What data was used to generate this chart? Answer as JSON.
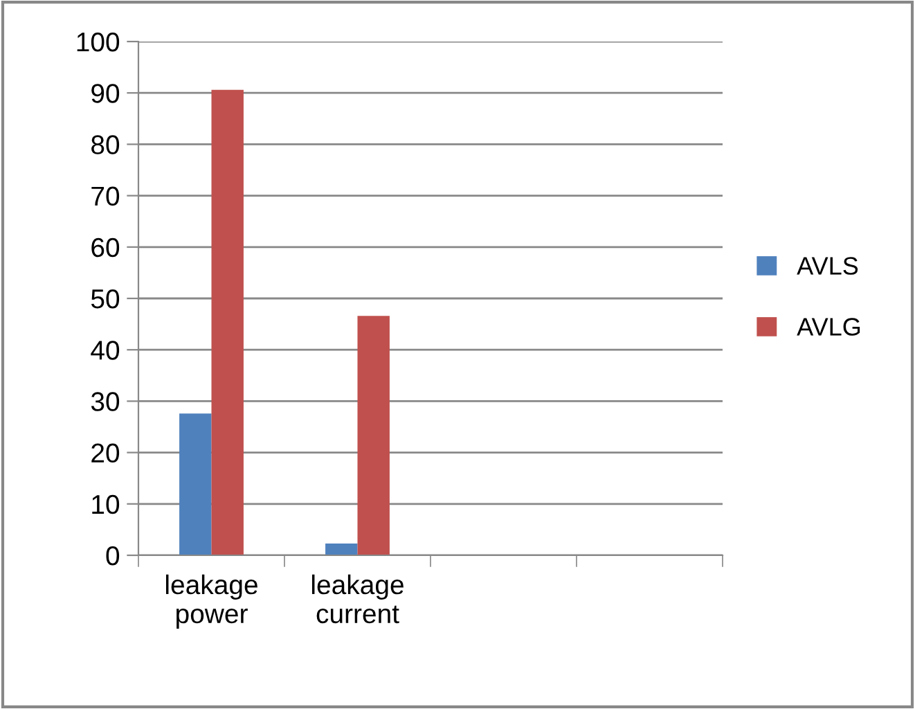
{
  "chart_data": {
    "type": "bar",
    "categories": [
      "leakage\npower",
      "leakage\ncurrent",
      null,
      null
    ],
    "series": [
      {
        "name": "AVLS",
        "color": "#4f81bd",
        "values": [
          27.6,
          2.3,
          null,
          null
        ]
      },
      {
        "name": "AVLG",
        "color": "#c0504d",
        "values": [
          90.6,
          46.6,
          null,
          null
        ]
      }
    ],
    "ylim": [
      0,
      100
    ],
    "yticks": [
      0,
      10,
      20,
      30,
      40,
      50,
      60,
      70,
      80,
      90,
      100
    ],
    "grid": "y",
    "legend": "right"
  }
}
